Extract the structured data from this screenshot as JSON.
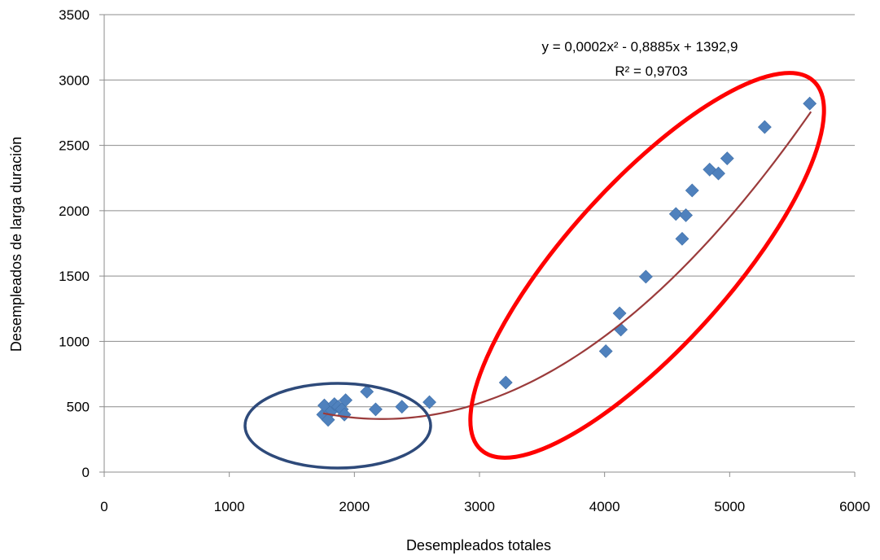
{
  "chart_data": {
    "type": "scatter",
    "xlabel": "Desempleados totales",
    "ylabel": "Desempleados de larga duración",
    "xlim": [
      0,
      6000
    ],
    "ylim": [
      0,
      3500
    ],
    "xticks": [
      0,
      1000,
      2000,
      3000,
      4000,
      5000,
      6000
    ],
    "yticks": [
      0,
      500,
      1000,
      1500,
      2000,
      2500,
      3000,
      3500
    ],
    "grid": "horizontal",
    "marker_color": "#4f81bd",
    "trendline_color": "#9b3b3b",
    "points": [
      {
        "x": 1750,
        "y": 440
      },
      {
        "x": 1760,
        "y": 510
      },
      {
        "x": 1790,
        "y": 400
      },
      {
        "x": 1820,
        "y": 470
      },
      {
        "x": 1840,
        "y": 520
      },
      {
        "x": 1870,
        "y": 500
      },
      {
        "x": 1900,
        "y": 480
      },
      {
        "x": 1920,
        "y": 440
      },
      {
        "x": 1930,
        "y": 550
      },
      {
        "x": 2100,
        "y": 615
      },
      {
        "x": 2170,
        "y": 480
      },
      {
        "x": 2380,
        "y": 500
      },
      {
        "x": 2600,
        "y": 535
      },
      {
        "x": 3210,
        "y": 685
      },
      {
        "x": 4010,
        "y": 925
      },
      {
        "x": 4120,
        "y": 1215
      },
      {
        "x": 4130,
        "y": 1090
      },
      {
        "x": 4330,
        "y": 1495
      },
      {
        "x": 4570,
        "y": 1975
      },
      {
        "x": 4620,
        "y": 1785
      },
      {
        "x": 4650,
        "y": 1965
      },
      {
        "x": 4700,
        "y": 2155
      },
      {
        "x": 4840,
        "y": 2315
      },
      {
        "x": 4910,
        "y": 2285
      },
      {
        "x": 4980,
        "y": 2400
      },
      {
        "x": 5280,
        "y": 2640
      },
      {
        "x": 5640,
        "y": 2820
      }
    ],
    "trendline": {
      "type": "polynomial",
      "a": 0.0002,
      "b": -0.8885,
      "c": 1392.9,
      "x_range": [
        1750,
        5650
      ],
      "equation_label": "y = 0,0002x² - 0,8885x + 1392,9",
      "r2_label": "R² = 0,9703"
    },
    "annotations": [
      {
        "shape": "ellipse",
        "color": "#2e4a7a"
      },
      {
        "shape": "ellipse",
        "color": "#ff0000"
      }
    ]
  }
}
